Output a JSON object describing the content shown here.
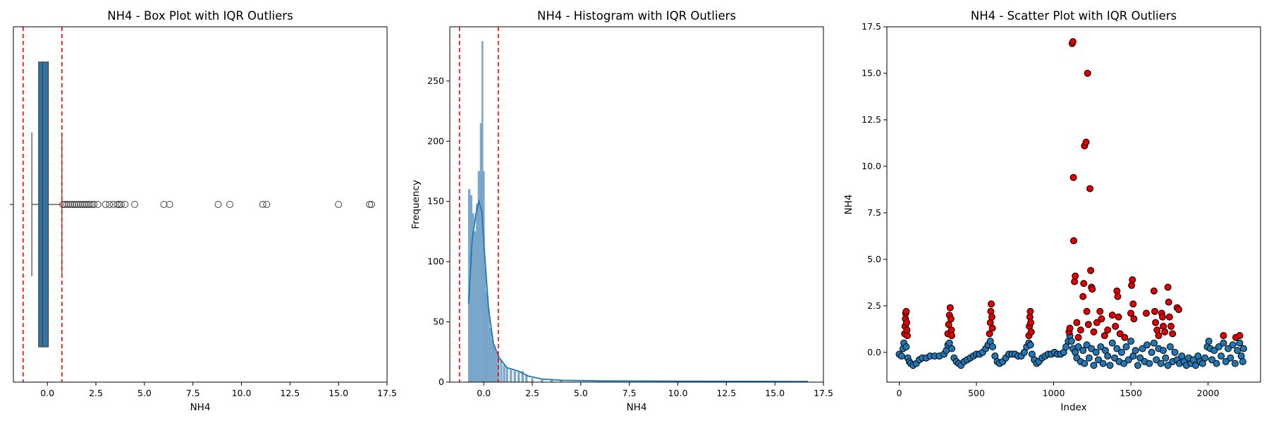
{
  "chart_data": [
    {
      "type": "box",
      "title": "NH4 - Box Plot with IQR Outliers",
      "xlabel": "NH4",
      "ylabel": "",
      "xlim": [
        -1.75,
        17.5
      ],
      "xticks": [
        "0.0",
        "2.5",
        "5.0",
        "7.5",
        "10.0",
        "12.5",
        "15.0",
        "17.5"
      ],
      "box": {
        "q1": -0.45,
        "median": -0.25,
        "q3": 0.05,
        "whisker_low": -0.8,
        "whisker_high": 0.75,
        "fill": "#3274a1"
      },
      "iqr_bounds": [
        -1.25,
        0.75
      ],
      "bound_line_color": "#ff0000",
      "outliers": [
        0.8,
        0.9,
        1.0,
        1.1,
        1.2,
        1.3,
        1.4,
        1.5,
        1.6,
        1.7,
        1.8,
        1.9,
        2.0,
        2.1,
        2.2,
        2.3,
        2.4,
        2.6,
        3.0,
        3.2,
        3.4,
        3.6,
        3.7,
        3.8,
        4.0,
        4.5,
        6.0,
        6.3,
        8.8,
        9.4,
        11.1,
        11.3,
        15.0,
        16.6,
        16.7
      ]
    },
    {
      "type": "histogram",
      "title": "NH4 - Histogram with IQR Outliers",
      "xlabel": "NH4",
      "ylabel": "Frequency",
      "xlim": [
        -1.75,
        17.5
      ],
      "ylim": [
        0,
        295
      ],
      "xticks": [
        "0.0",
        "2.5",
        "5.0",
        "7.5",
        "10.0",
        "12.5",
        "15.0",
        "17.5"
      ],
      "yticks": [
        "0",
        "50",
        "100",
        "150",
        "200",
        "250"
      ],
      "iqr_bounds": [
        -1.25,
        0.75
      ],
      "bar_color": "#6a9bc3",
      "kde_color": "#1f77b4",
      "bins": [
        {
          "x": -0.75,
          "y": 160
        },
        {
          "x": -0.65,
          "y": 155
        },
        {
          "x": -0.55,
          "y": 140
        },
        {
          "x": -0.45,
          "y": 125
        },
        {
          "x": -0.35,
          "y": 148
        },
        {
          "x": -0.25,
          "y": 175
        },
        {
          "x": -0.15,
          "y": 215
        },
        {
          "x": -0.07,
          "y": 283
        },
        {
          "x": 0.0,
          "y": 175
        },
        {
          "x": 0.08,
          "y": 95
        },
        {
          "x": 0.15,
          "y": 75
        },
        {
          "x": 0.25,
          "y": 60
        },
        {
          "x": 0.35,
          "y": 45
        },
        {
          "x": 0.45,
          "y": 35
        },
        {
          "x": 0.55,
          "y": 30
        },
        {
          "x": 0.65,
          "y": 25
        },
        {
          "x": 0.75,
          "y": 22
        },
        {
          "x": 0.9,
          "y": 18
        },
        {
          "x": 1.05,
          "y": 14
        },
        {
          "x": 1.2,
          "y": 12
        },
        {
          "x": 1.4,
          "y": 10
        },
        {
          "x": 1.6,
          "y": 9
        },
        {
          "x": 1.8,
          "y": 8
        },
        {
          "x": 2.0,
          "y": 9
        },
        {
          "x": 2.2,
          "y": 6
        },
        {
          "x": 2.5,
          "y": 3
        },
        {
          "x": 3.0,
          "y": 2
        },
        {
          "x": 3.5,
          "y": 2
        },
        {
          "x": 4.0,
          "y": 1
        },
        {
          "x": 6.0,
          "y": 1
        },
        {
          "x": 9.0,
          "y": 1
        },
        {
          "x": 11.0,
          "y": 1
        },
        {
          "x": 15.0,
          "y": 1
        },
        {
          "x": 16.6,
          "y": 1
        }
      ],
      "kde": [
        {
          "x": -0.78,
          "y": 65
        },
        {
          "x": -0.6,
          "y": 118
        },
        {
          "x": -0.4,
          "y": 140
        },
        {
          "x": -0.25,
          "y": 150
        },
        {
          "x": -0.1,
          "y": 142
        },
        {
          "x": 0.05,
          "y": 105
        },
        {
          "x": 0.25,
          "y": 60
        },
        {
          "x": 0.5,
          "y": 32
        },
        {
          "x": 0.8,
          "y": 20
        },
        {
          "x": 1.2,
          "y": 12
        },
        {
          "x": 1.8,
          "y": 9
        },
        {
          "x": 2.3,
          "y": 5
        },
        {
          "x": 3.0,
          "y": 2.5
        },
        {
          "x": 4.0,
          "y": 1.5
        },
        {
          "x": 6.0,
          "y": 1
        },
        {
          "x": 10.0,
          "y": 0.8
        },
        {
          "x": 15.0,
          "y": 0.6
        },
        {
          "x": 16.7,
          "y": 0.5
        }
      ]
    },
    {
      "type": "scatter",
      "title": "NH4 - Scatter Plot with IQR Outliers",
      "xlabel": "Index",
      "ylabel": "NH4",
      "xlim": [
        -80,
        2340
      ],
      "ylim": [
        -1.6,
        17.5
      ],
      "xticks": [
        "0",
        "500",
        "1000",
        "1500",
        "2000"
      ],
      "yticks": [
        "0.0",
        "2.5",
        "5.0",
        "7.5",
        "10.0",
        "12.5",
        "15.0",
        "17.5"
      ],
      "normal_color": "#1f77b4",
      "outlier_color": "#e00000",
      "normal_points": [
        [
          0,
          -0.1
        ],
        [
          15,
          -0.2
        ],
        [
          25,
          0.2
        ],
        [
          30,
          0.5
        ],
        [
          45,
          0.3
        ],
        [
          55,
          -0.3
        ],
        [
          65,
          -0.5
        ],
        [
          75,
          -0.6
        ],
        [
          90,
          -0.7
        ],
        [
          110,
          -0.6
        ],
        [
          130,
          -0.4
        ],
        [
          150,
          -0.3
        ],
        [
          175,
          -0.3
        ],
        [
          200,
          -0.2
        ],
        [
          230,
          -0.2
        ],
        [
          260,
          -0.2
        ],
        [
          290,
          -0.1
        ],
        [
          305,
          0.1
        ],
        [
          315,
          0.4
        ],
        [
          325,
          0.5
        ],
        [
          340,
          0.2
        ],
        [
          355,
          -0.3
        ],
        [
          370,
          -0.5
        ],
        [
          385,
          -0.6
        ],
        [
          400,
          -0.7
        ],
        [
          420,
          -0.5
        ],
        [
          440,
          -0.4
        ],
        [
          460,
          -0.3
        ],
        [
          480,
          -0.2
        ],
        [
          500,
          -0.1
        ],
        [
          520,
          -0.1
        ],
        [
          540,
          0.0
        ],
        [
          560,
          0.2
        ],
        [
          575,
          0.4
        ],
        [
          590,
          0.6
        ],
        [
          605,
          0.3
        ],
        [
          620,
          -0.2
        ],
        [
          635,
          -0.5
        ],
        [
          650,
          -0.6
        ],
        [
          670,
          -0.5
        ],
        [
          690,
          -0.3
        ],
        [
          710,
          -0.1
        ],
        [
          730,
          -0.1
        ],
        [
          750,
          -0.1
        ],
        [
          770,
          -0.2
        ],
        [
          790,
          -0.2
        ],
        [
          810,
          0.0
        ],
        [
          825,
          0.3
        ],
        [
          840,
          0.5
        ],
        [
          850,
          0.4
        ],
        [
          860,
          -0.1
        ],
        [
          875,
          -0.4
        ],
        [
          890,
          -0.6
        ],
        [
          905,
          -0.5
        ],
        [
          925,
          -0.3
        ],
        [
          945,
          -0.2
        ],
        [
          965,
          -0.1
        ],
        [
          985,
          -0.1
        ],
        [
          1005,
          0.0
        ],
        [
          1025,
          -0.1
        ],
        [
          1045,
          -0.1
        ],
        [
          1065,
          0.0
        ],
        [
          1080,
          0.3
        ],
        [
          1095,
          0.6
        ],
        [
          1105,
          0.9
        ],
        [
          1115,
          0.6
        ],
        [
          1125,
          0.2
        ],
        [
          1140,
          0.0
        ],
        [
          1150,
          -0.3
        ],
        [
          1160,
          0.3
        ],
        [
          1175,
          -0.5
        ],
        [
          1190,
          0.1
        ],
        [
          1200,
          -0.6
        ],
        [
          1215,
          0.4
        ],
        [
          1230,
          -0.3
        ],
        [
          1245,
          0.2
        ],
        [
          1260,
          -0.7
        ],
        [
          1275,
          0.0
        ],
        [
          1290,
          -0.4
        ],
        [
          1305,
          0.3
        ],
        [
          1320,
          -0.6
        ],
        [
          1335,
          0.1
        ],
        [
          1350,
          -0.2
        ],
        [
          1365,
          -0.7
        ],
        [
          1380,
          0.5
        ],
        [
          1395,
          -0.3
        ],
        [
          1410,
          0.2
        ],
        [
          1425,
          -0.5
        ],
        [
          1440,
          0.0
        ],
        [
          1455,
          -0.6
        ],
        [
          1470,
          0.3
        ],
        [
          1485,
          -0.4
        ],
        [
          1500,
          0.6
        ],
        [
          1515,
          -0.2
        ],
        [
          1530,
          0.1
        ],
        [
          1545,
          -0.7
        ],
        [
          1560,
          -0.3
        ],
        [
          1575,
          0.2
        ],
        [
          1590,
          -0.5
        ],
        [
          1605,
          0.4
        ],
        [
          1620,
          -0.6
        ],
        [
          1635,
          0.0
        ],
        [
          1650,
          0.5
        ],
        [
          1665,
          -0.4
        ],
        [
          1680,
          0.2
        ],
        [
          1695,
          -0.6
        ],
        [
          1710,
          0.1
        ],
        [
          1725,
          -0.3
        ],
        [
          1740,
          -0.7
        ],
        [
          1755,
          0.3
        ],
        [
          1770,
          -0.5
        ],
        [
          1785,
          0.0
        ],
        [
          1800,
          -0.4
        ],
        [
          1815,
          -0.6
        ],
        [
          1830,
          -0.2
        ],
        [
          1845,
          -0.5
        ],
        [
          1860,
          -0.7
        ],
        [
          1875,
          -0.3
        ],
        [
          1890,
          -0.6
        ],
        [
          1905,
          -0.4
        ],
        [
          1920,
          -0.7
        ],
        [
          1935,
          -0.2
        ],
        [
          1950,
          -0.5
        ],
        [
          1965,
          -0.6
        ],
        [
          1980,
          -0.3
        ],
        [
          1995,
          0.3
        ],
        [
          2005,
          0.6
        ],
        [
          2015,
          0.2
        ],
        [
          2025,
          -0.4
        ],
        [
          2040,
          0.1
        ],
        [
          2055,
          -0.6
        ],
        [
          2070,
          0.3
        ],
        [
          2085,
          -0.2
        ],
        [
          2100,
          0.5
        ],
        [
          2115,
          -0.5
        ],
        [
          2130,
          0.2
        ],
        [
          2145,
          -0.3
        ],
        [
          2160,
          0.4
        ],
        [
          2175,
          -0.6
        ],
        [
          2190,
          0.1
        ],
        [
          2205,
          0.5
        ],
        [
          2215,
          -0.2
        ],
        [
          2225,
          -0.5
        ],
        [
          2230,
          0.2
        ]
      ],
      "outlier_points": [
        [
          35,
          1.0
        ],
        [
          38,
          1.4
        ],
        [
          40,
          1.8
        ],
        [
          42,
          2.1
        ],
        [
          45,
          2.2
        ],
        [
          48,
          1.6
        ],
        [
          50,
          1.2
        ],
        [
          52,
          0.9
        ],
        [
          315,
          1.0
        ],
        [
          320,
          1.5
        ],
        [
          325,
          2.0
        ],
        [
          330,
          2.4
        ],
        [
          335,
          1.8
        ],
        [
          338,
          1.2
        ],
        [
          340,
          0.9
        ],
        [
          585,
          1.0
        ],
        [
          590,
          1.6
        ],
        [
          593,
          2.2
        ],
        [
          596,
          2.6
        ],
        [
          600,
          1.9
        ],
        [
          603,
          1.3
        ],
        [
          840,
          0.9
        ],
        [
          843,
          1.4
        ],
        [
          846,
          1.9
        ],
        [
          849,
          2.2
        ],
        [
          852,
          1.6
        ],
        [
          855,
          1.1
        ],
        [
          1100,
          1.1
        ],
        [
          1105,
          1.3
        ],
        [
          1120,
          16.6
        ],
        [
          1125,
          16.7
        ],
        [
          1128,
          9.4
        ],
        [
          1130,
          6.0
        ],
        [
          1135,
          3.8
        ],
        [
          1140,
          4.1
        ],
        [
          1150,
          1.6
        ],
        [
          1160,
          0.8
        ],
        [
          1175,
          1.2
        ],
        [
          1190,
          3.0
        ],
        [
          1195,
          3.7
        ],
        [
          1200,
          11.1
        ],
        [
          1210,
          11.3
        ],
        [
          1215,
          2.2
        ],
        [
          1220,
          15.0
        ],
        [
          1225,
          1.5
        ],
        [
          1235,
          8.8
        ],
        [
          1240,
          4.4
        ],
        [
          1245,
          3.5
        ],
        [
          1250,
          3.4
        ],
        [
          1260,
          1.1
        ],
        [
          1280,
          1.6
        ],
        [
          1300,
          2.2
        ],
        [
          1310,
          1.8
        ],
        [
          1330,
          0.9
        ],
        [
          1350,
          1.2
        ],
        [
          1380,
          2.0
        ],
        [
          1400,
          1.4
        ],
        [
          1410,
          3.3
        ],
        [
          1415,
          3.0
        ],
        [
          1420,
          1.9
        ],
        [
          1430,
          1.0
        ],
        [
          1460,
          0.8
        ],
        [
          1500,
          2.1
        ],
        [
          1505,
          3.6
        ],
        [
          1510,
          3.9
        ],
        [
          1515,
          2.6
        ],
        [
          1520,
          1.8
        ],
        [
          1600,
          2.1
        ],
        [
          1650,
          3.3
        ],
        [
          1655,
          2.2
        ],
        [
          1660,
          1.6
        ],
        [
          1670,
          1.2
        ],
        [
          1680,
          0.9
        ],
        [
          1700,
          2.1
        ],
        [
          1705,
          1.9
        ],
        [
          1710,
          1.4
        ],
        [
          1720,
          1.1
        ],
        [
          1740,
          3.5
        ],
        [
          1745,
          2.7
        ],
        [
          1750,
          1.9
        ],
        [
          1760,
          1.4
        ],
        [
          1770,
          1.0
        ],
        [
          1800,
          2.4
        ],
        [
          1810,
          2.3
        ],
        [
          2100,
          0.9
        ],
        [
          2180,
          0.8
        ],
        [
          2205,
          0.9
        ]
      ]
    }
  ]
}
